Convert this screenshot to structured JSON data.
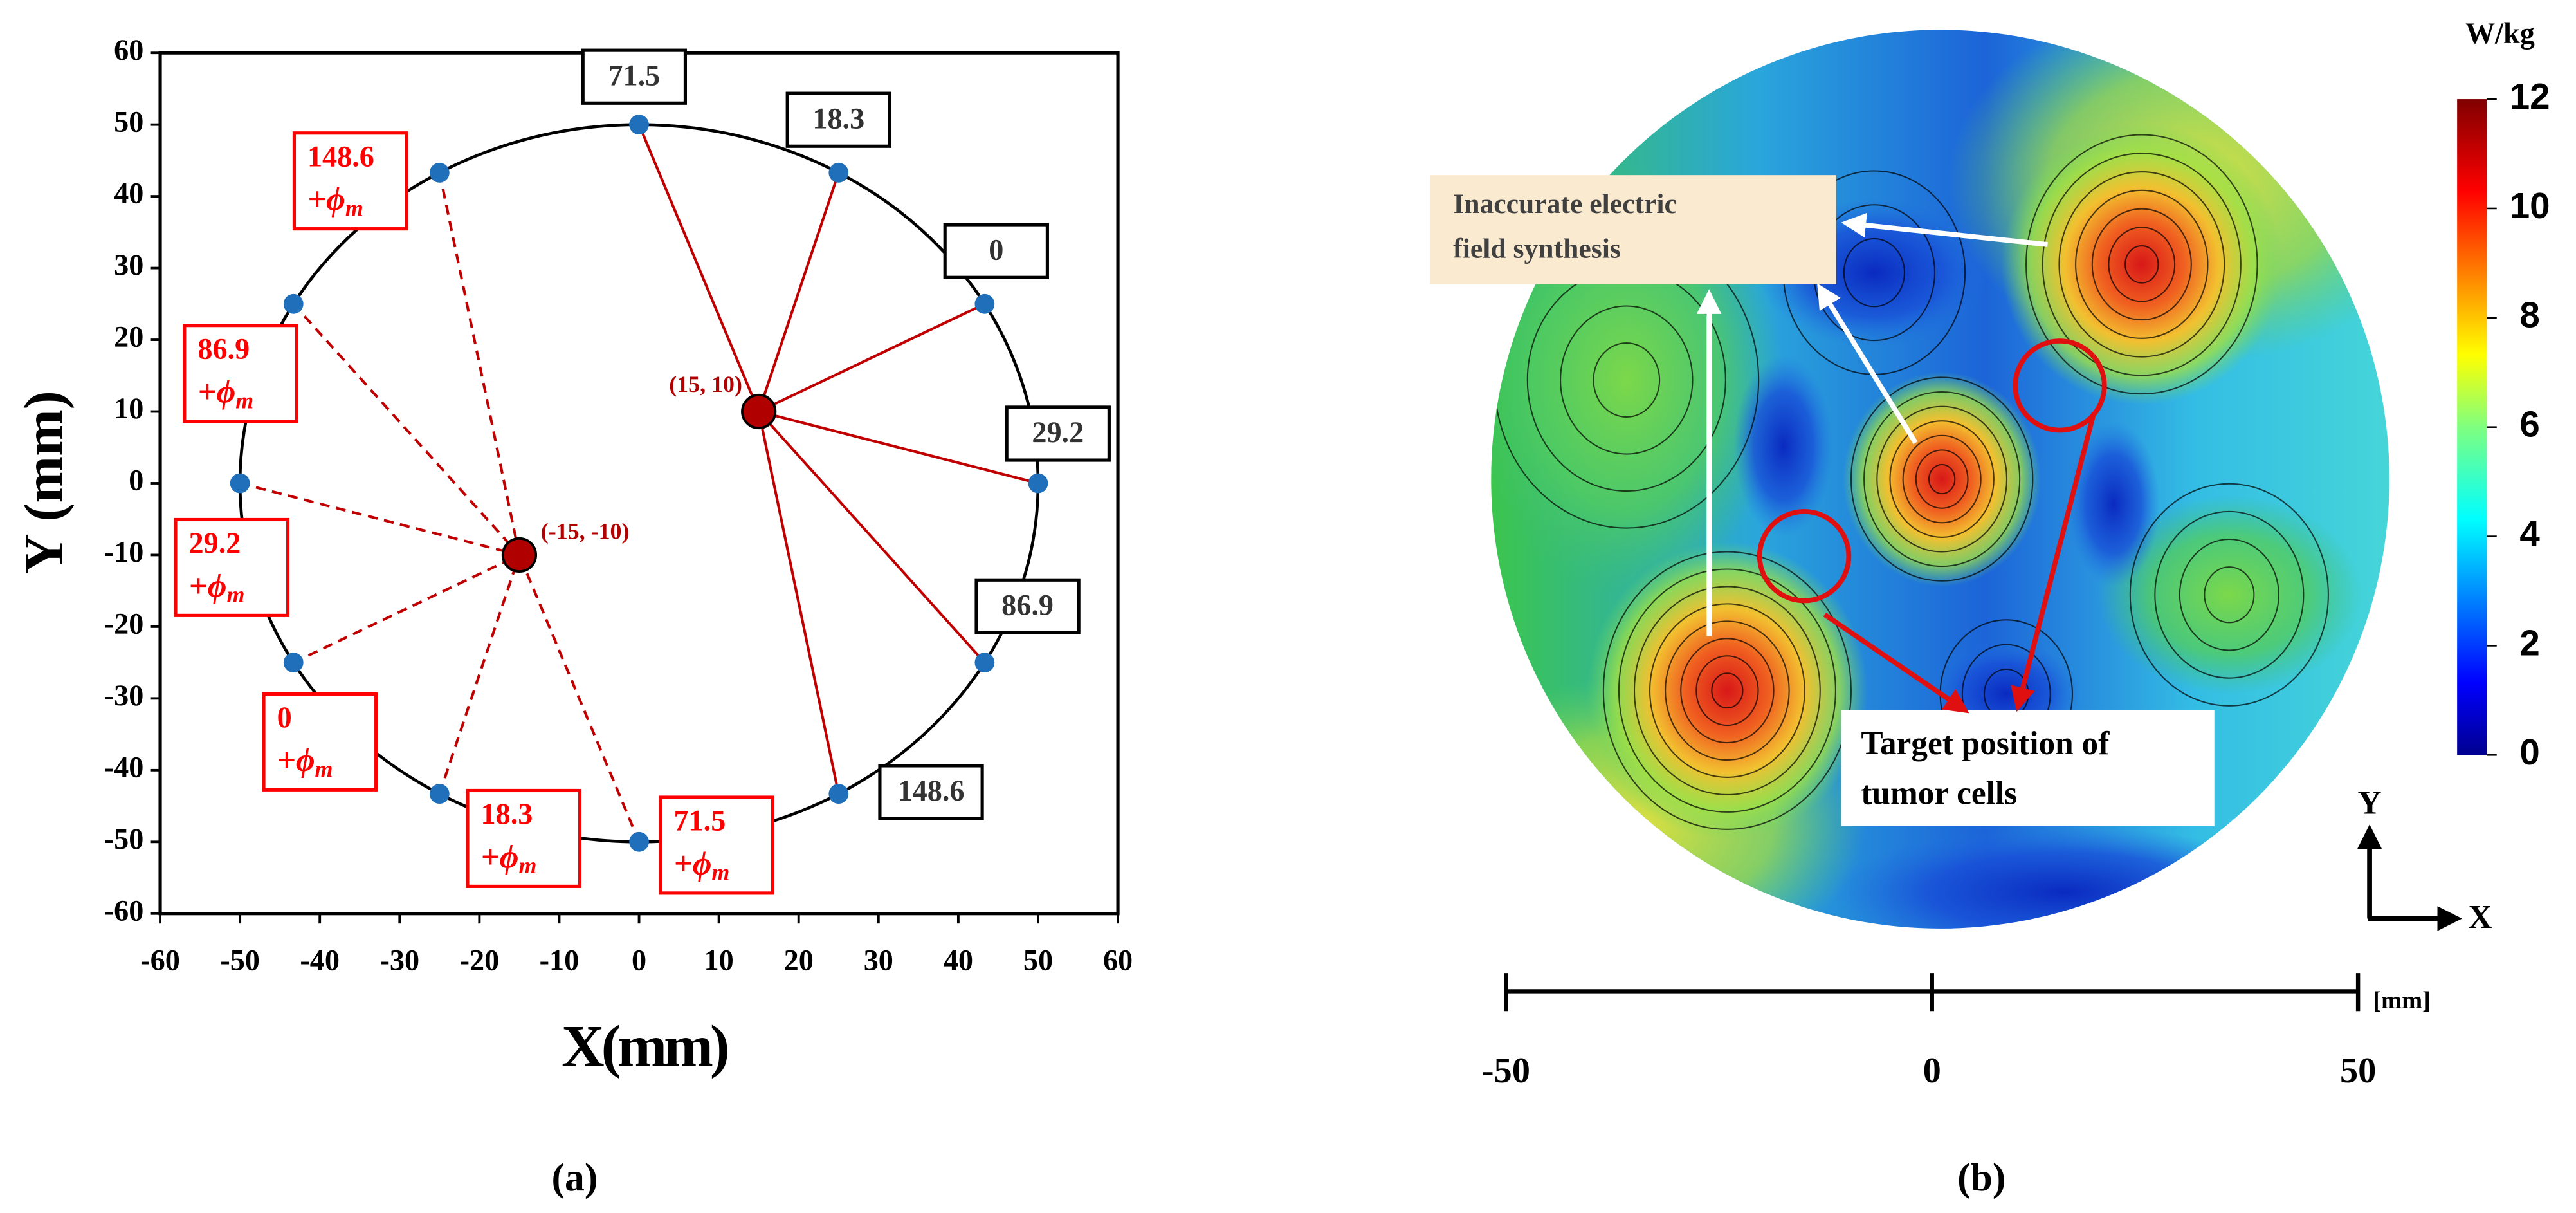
{
  "chart_data": [
    {
      "type": "scatter",
      "label": "(a)",
      "xlabel": "X(mm)",
      "ylabel": "Y (mm)",
      "xlim": [
        -60,
        60
      ],
      "ylim": [
        -60,
        60
      ],
      "xticks": [
        -60,
        -50,
        -40,
        -30,
        -20,
        -10,
        0,
        10,
        20,
        30,
        40,
        50,
        60
      ],
      "yticks": [
        -60,
        -50,
        -40,
        -30,
        -20,
        -10,
        0,
        10,
        20,
        30,
        40,
        50,
        60
      ],
      "circle": {
        "x": 0,
        "y": 0,
        "r": 50,
        "color": "#000000"
      },
      "series": [
        {
          "color": "#1f6fba",
          "label_color": "#333333",
          "box_color": "#000000",
          "line_color": "#c00000",
          "line": "solid",
          "focus": 0,
          "x": [
            0,
            25,
            43.3,
            50,
            43.3,
            25
          ],
          "y": [
            50,
            43.3,
            25,
            0,
            -25,
            -43.3
          ],
          "phases": [
            71.5,
            18.3,
            0,
            29.2,
            86.9,
            148.6
          ]
        },
        {
          "color": "#1f6fba",
          "label_color": "#ff0000",
          "box_color": "#ff0000",
          "line_color": "#c00000",
          "line": "dashed",
          "focus": 1,
          "x": [
            -25,
            -43.3,
            -50,
            -43.3,
            -25,
            0
          ],
          "y": [
            43.3,
            25,
            0,
            -25,
            -43.3,
            -50
          ],
          "phases": [
            148.6,
            86.9,
            29.2,
            0,
            18.3,
            71.5
          ],
          "suffix": "+ϕ",
          "suffix_sub": "m"
        }
      ],
      "foci": {
        "x": [
          15,
          -15
        ],
        "y": [
          10,
          -10
        ],
        "labels": [
          "(15, 10)",
          "(-15, -10)"
        ],
        "color": "#b00000"
      }
    },
    {
      "type": "heatmap",
      "label": "(b)",
      "colorbar_label": "W/kg",
      "colormap": "jet",
      "clim": [
        0,
        12
      ],
      "cticks": [
        0,
        2,
        4,
        6,
        8,
        10,
        12
      ],
      "xlim": [
        -50,
        50
      ],
      "xticks": [
        -50,
        0,
        50
      ],
      "xunit": "[mm]",
      "targets": {
        "x": [
          15,
          -15
        ],
        "y": [
          10,
          -10
        ],
        "color": "#e01010"
      },
      "annotations": [
        {
          "lines": [
            "Inaccurate electric",
            "field synthesis"
          ]
        },
        {
          "lines": [
            "Target position of",
            "tumor cells"
          ]
        }
      ],
      "orient_y": "Y",
      "orient_x": "X"
    }
  ]
}
